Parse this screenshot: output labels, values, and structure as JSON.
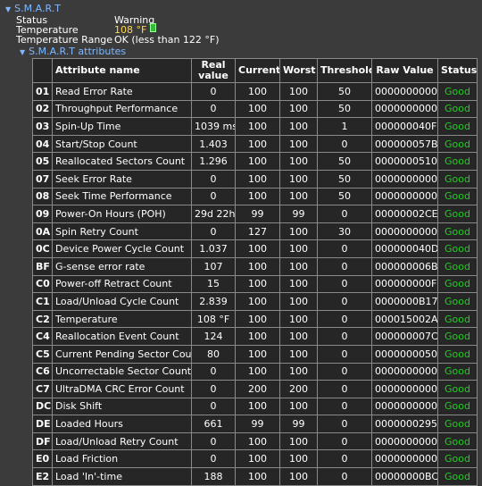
{
  "section": {
    "title": "S.M.A.R.T"
  },
  "status": [
    {
      "label": "Status",
      "value": "Warning"
    },
    {
      "label": "Temperature",
      "value": "108 °F"
    },
    {
      "label": "Temperature Range",
      "value": "OK (less than 122 °F)"
    }
  ],
  "subsection": {
    "title": "S.M.A.R.T attributes"
  },
  "table": {
    "headers": [
      "Attribute name",
      "Real value",
      "Current",
      "Worst",
      "Threshold",
      "Raw Value",
      "Status"
    ],
    "rows": [
      [
        "01",
        "Read Error Rate",
        "0",
        "100",
        "100",
        "50",
        "0000000000",
        "Good"
      ],
      [
        "02",
        "Throughput Performance",
        "0",
        "100",
        "100",
        "50",
        "0000000000",
        "Good"
      ],
      [
        "03",
        "Spin-Up Time",
        "1039 ms",
        "100",
        "100",
        "1",
        "000000040F",
        "Good"
      ],
      [
        "04",
        "Start/Stop Count",
        "1.403",
        "100",
        "100",
        "0",
        "000000057B",
        "Good"
      ],
      [
        "05",
        "Reallocated Sectors Count",
        "1.296",
        "100",
        "100",
        "50",
        "0000000510",
        "Good"
      ],
      [
        "07",
        "Seek Error Rate",
        "0",
        "100",
        "100",
        "50",
        "0000000000",
        "Good"
      ],
      [
        "08",
        "Seek Time Performance",
        "0",
        "100",
        "100",
        "50",
        "0000000000",
        "Good"
      ],
      [
        "09",
        "Power-On Hours (POH)",
        "29d 22h",
        "99",
        "99",
        "0",
        "00000002CE",
        "Good"
      ],
      [
        "0A",
        "Spin Retry Count",
        "0",
        "127",
        "100",
        "30",
        "0000000000",
        "Good"
      ],
      [
        "0C",
        "Device Power Cycle Count",
        "1.037",
        "100",
        "100",
        "0",
        "000000040D",
        "Good"
      ],
      [
        "BF",
        "G-sense error rate",
        "107",
        "100",
        "100",
        "0",
        "000000006B",
        "Good"
      ],
      [
        "C0",
        "Power-off Retract Count",
        "15",
        "100",
        "100",
        "0",
        "000000000F",
        "Good"
      ],
      [
        "C1",
        "Load/Unload Cycle Count",
        "2.839",
        "100",
        "100",
        "0",
        "0000000B17",
        "Good"
      ],
      [
        "C2",
        "Temperature",
        "108 °F",
        "100",
        "100",
        "0",
        "000015002A",
        "Good"
      ],
      [
        "C4",
        "Reallocation Event Count",
        "124",
        "100",
        "100",
        "0",
        "000000007C",
        "Good"
      ],
      [
        "C5",
        "Current Pending Sector Count",
        "80",
        "100",
        "100",
        "0",
        "0000000050",
        "Good"
      ],
      [
        "C6",
        "Uncorrectable Sector Count",
        "0",
        "100",
        "100",
        "0",
        "0000000000",
        "Good"
      ],
      [
        "C7",
        "UltraDMA CRC Error Count",
        "0",
        "200",
        "200",
        "0",
        "0000000000",
        "Good"
      ],
      [
        "DC",
        "Disk Shift",
        "0",
        "100",
        "100",
        "0",
        "0000000000",
        "Good"
      ],
      [
        "DE",
        "Loaded Hours",
        "661",
        "99",
        "99",
        "0",
        "0000000295",
        "Good"
      ],
      [
        "DF",
        "Load/Unload Retry Count",
        "0",
        "100",
        "100",
        "0",
        "0000000000",
        "Good"
      ],
      [
        "E0",
        "Load Friction",
        "0",
        "100",
        "100",
        "0",
        "0000000000",
        "Good"
      ],
      [
        "E2",
        "Load 'In'-time",
        "188",
        "100",
        "100",
        "0",
        "00000000BC",
        "Good"
      ]
    ]
  }
}
